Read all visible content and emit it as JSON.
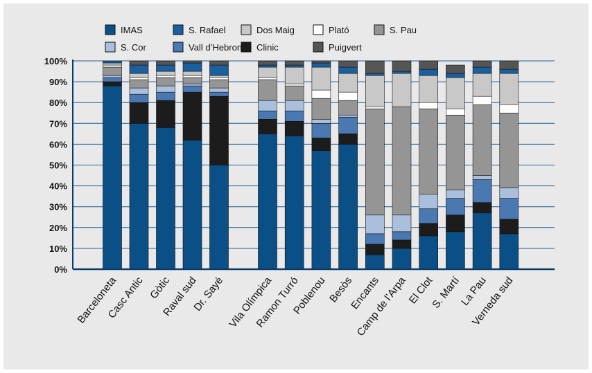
{
  "chart_data": {
    "type": "bar",
    "stacked": true,
    "categories": [
      "Barceloneta",
      "Casc Antic",
      "Gòtic",
      "Raval sud",
      "Dr. Sayé",
      "Vila Olímpica",
      "Ramon Turró",
      "Poblenou",
      "Besòs",
      "Encants",
      "Camp de l’Arpa",
      "El Clot",
      "S. Martí",
      "La Pau",
      "Verneda sud"
    ],
    "ylim": [
      0,
      100
    ],
    "yticks": [
      "0%",
      "10%",
      "20%",
      "30%",
      "40%",
      "50%",
      "60%",
      "70%",
      "80%",
      "90%",
      "100%"
    ],
    "grid": true,
    "legend_position": "top",
    "series": [
      {
        "name": "IMAS",
        "color": "#0a4f86",
        "values": [
          88,
          70,
          68,
          62,
          50,
          65,
          64,
          57,
          60,
          7,
          10,
          16,
          18,
          27,
          17
        ]
      },
      {
        "name": "Clinic",
        "color": "#1c1c1c",
        "values": [
          2,
          10,
          13,
          23,
          33,
          7,
          7,
          6,
          5,
          5,
          4,
          6,
          8,
          5,
          7
        ]
      },
      {
        "name": "Vall d’Hebron",
        "color": "#4a78b0",
        "values": [
          2,
          4,
          4,
          3,
          2,
          4,
          5,
          7,
          8,
          5,
          4,
          7,
          8,
          11,
          10
        ]
      },
      {
        "name": "S. Cor",
        "color": "#a9bfdc",
        "values": [
          1,
          3,
          3,
          1,
          2,
          5,
          5,
          2,
          1,
          9,
          8,
          7,
          4,
          2,
          5
        ]
      },
      {
        "name": "S. Pau",
        "color": "#959595",
        "values": [
          4,
          4,
          4,
          3,
          4,
          10,
          7,
          10,
          7,
          51,
          52,
          41,
          36,
          34,
          36
        ]
      },
      {
        "name": "Plató",
        "color": "#ffffff",
        "values": [
          1,
          1,
          1,
          1,
          1,
          1,
          1,
          4,
          4,
          1,
          0,
          3,
          3,
          4,
          4
        ]
      },
      {
        "name": "Dos Maig",
        "color": "#c8c8c8",
        "values": [
          1,
          2,
          2,
          2,
          1,
          5,
          8,
          11,
          9,
          15,
          16,
          13,
          15,
          11,
          15
        ]
      },
      {
        "name": "S. Rafael",
        "color": "#1b5f9e",
        "values": [
          1,
          4,
          3,
          4,
          5,
          1,
          1,
          2,
          3,
          1,
          1,
          3,
          2,
          3,
          2
        ]
      },
      {
        "name": "Puigvert",
        "color": "#555555",
        "values": [
          0,
          2,
          2,
          1,
          2,
          2,
          2,
          1,
          3,
          6,
          5,
          4,
          4,
          3,
          4
        ]
      }
    ],
    "legend": [
      {
        "name": "IMAS",
        "color": "#0a4f86"
      },
      {
        "name": "S. Rafael",
        "color": "#1b5f9e"
      },
      {
        "name": "Dos Maig",
        "color": "#c8c8c8"
      },
      {
        "name": "Plató",
        "color": "#ffffff"
      },
      {
        "name": "S. Pau",
        "color": "#959595"
      },
      {
        "name": "S. Cor",
        "color": "#a9bfdc"
      },
      {
        "name": "Vall d’Hebron",
        "color": "#4a78b0"
      },
      {
        "name": "Clinic",
        "color": "#1c1c1c"
      },
      {
        "name": "Puigvert",
        "color": "#555555"
      }
    ],
    "colors": {
      "grid": "#1f5a8f",
      "axis": "#0a3b6b",
      "background": "#e9e9e9"
    }
  }
}
